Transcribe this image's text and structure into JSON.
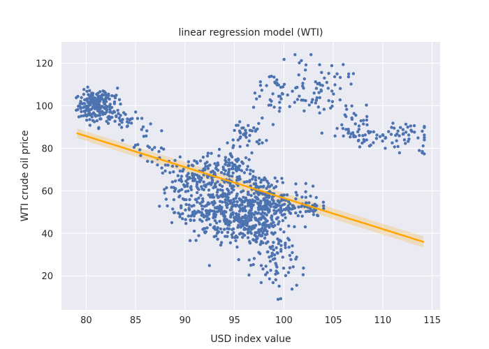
{
  "chart_data": {
    "type": "scatter",
    "title": "linear regression model (WTI)",
    "xlabel": "USD index value",
    "ylabel": "WTI crude oil price",
    "xlim": [
      77.5,
      115.8
    ],
    "ylim": [
      4,
      130
    ],
    "xticks": [
      80,
      85,
      90,
      95,
      100,
      105,
      110,
      115
    ],
    "yticks": [
      20,
      40,
      60,
      80,
      100,
      120
    ],
    "grid": true,
    "background_color": "#eaeaf2",
    "point_color": "#4c72b0",
    "fit_color": "#ffa500",
    "clusters": [
      {
        "cx": 80.6,
        "cy": 100,
        "sx": 0.7,
        "sy": 3.5,
        "n": 130
      },
      {
        "cx": 82.0,
        "cy": 103,
        "sx": 0.8,
        "sy": 3.5,
        "n": 45
      },
      {
        "cx": 82.5,
        "cy": 95,
        "sx": 1.2,
        "sy": 2.5,
        "n": 45
      },
      {
        "cx": 84.3,
        "cy": 92,
        "sx": 0.8,
        "sy": 2.0,
        "n": 12
      },
      {
        "cx": 86.0,
        "cy": 83,
        "sx": 0.8,
        "sy": 3.0,
        "n": 14
      },
      {
        "cx": 88.0,
        "cy": 75,
        "sx": 0.9,
        "sy": 3.0,
        "n": 14
      },
      {
        "cx": 90.0,
        "cy": 62,
        "sx": 1.3,
        "sy": 5.0,
        "n": 80
      },
      {
        "cx": 91.0,
        "cy": 50,
        "sx": 1.0,
        "sy": 3.5,
        "n": 30
      },
      {
        "cx": 93.0,
        "cy": 66,
        "sx": 1.5,
        "sy": 5.5,
        "n": 100
      },
      {
        "cx": 93.5,
        "cy": 49,
        "sx": 1.8,
        "sy": 6.0,
        "n": 160
      },
      {
        "cx": 95.0,
        "cy": 70,
        "sx": 1.0,
        "sy": 6.0,
        "n": 60
      },
      {
        "cx": 96.0,
        "cy": 48,
        "sx": 1.6,
        "sy": 6.5,
        "n": 200
      },
      {
        "cx": 96.3,
        "cy": 87,
        "sx": 0.9,
        "sy": 3.5,
        "n": 40
      },
      {
        "cx": 97.8,
        "cy": 56,
        "sx": 1.3,
        "sy": 6.0,
        "n": 160
      },
      {
        "cx": 98.0,
        "cy": 38,
        "sx": 1.2,
        "sy": 6.0,
        "n": 70
      },
      {
        "cx": 99.5,
        "cy": 26,
        "sx": 0.9,
        "sy": 7.5,
        "n": 55
      },
      {
        "cx": 100.5,
        "cy": 53,
        "sx": 1.5,
        "sy": 4.0,
        "n": 70
      },
      {
        "cx": 102.5,
        "cy": 51,
        "sx": 0.9,
        "sy": 2.0,
        "n": 25
      },
      {
        "cx": 99.5,
        "cy": 105,
        "sx": 1.7,
        "sy": 6.5,
        "n": 45
      },
      {
        "cx": 103.5,
        "cy": 110,
        "sx": 1.6,
        "sy": 6.0,
        "n": 55
      },
      {
        "cx": 106.5,
        "cy": 93,
        "sx": 1.0,
        "sy": 5.0,
        "n": 30
      },
      {
        "cx": 108.5,
        "cy": 87,
        "sx": 1.2,
        "sy": 4.0,
        "n": 30
      },
      {
        "cx": 111.5,
        "cy": 86,
        "sx": 1.5,
        "sy": 3.5,
        "n": 45
      },
      {
        "cx": 113.8,
        "cy": 78,
        "sx": 0.4,
        "sy": 1.5,
        "n": 4
      }
    ],
    "regression_line": {
      "x": [
        79.1,
        114.1
      ],
      "y": [
        87.0,
        36.0
      ],
      "ci_halfwidth": [
        2.2,
        2.6
      ]
    }
  }
}
